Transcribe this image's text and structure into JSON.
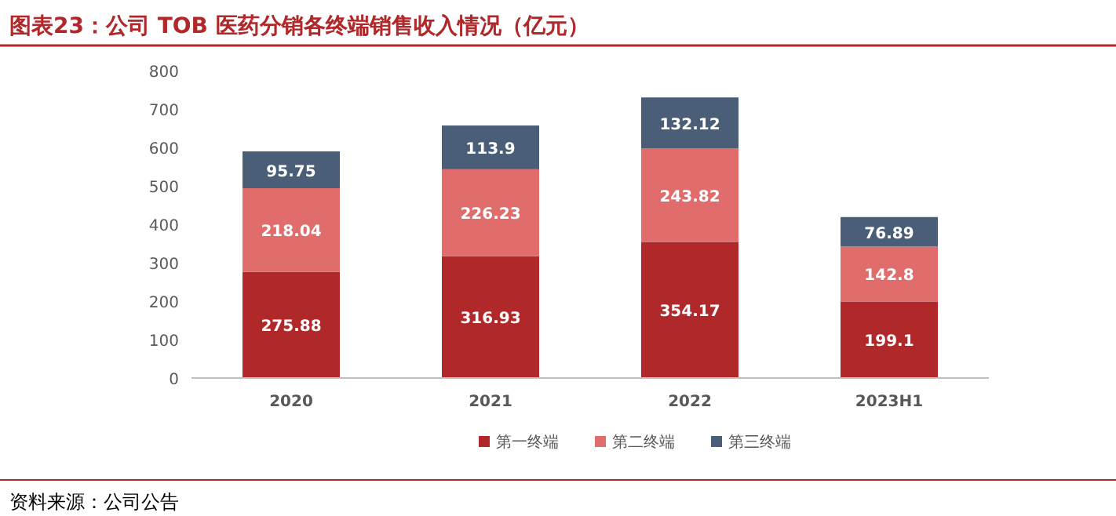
{
  "chart_data": {
    "type": "bar",
    "title": "图表23：公司 TOB 医药分销各终端销售收入情况（亿元）",
    "categories": [
      "2020",
      "2021",
      "2022",
      "2023H1"
    ],
    "series": [
      {
        "name": "第一终端",
        "color": "#b0282a",
        "values": [
          275.88,
          316.93,
          354.17,
          199.1
        ]
      },
      {
        "name": "第二终端",
        "color": "#e06c6c",
        "values": [
          218.04,
          226.23,
          243.82,
          142.8
        ]
      },
      {
        "name": "第三终端",
        "color": "#4a5e78",
        "values": [
          95.75,
          113.9,
          132.12,
          76.89
        ]
      }
    ],
    "stacked": true,
    "data_labels": true,
    "legend": "bottom",
    "ylim": [
      0,
      800
    ],
    "yticks": [
      0,
      100,
      200,
      300,
      400,
      500,
      600,
      700,
      800
    ],
    "annotations": [
      "资料来源：公司公告"
    ]
  }
}
